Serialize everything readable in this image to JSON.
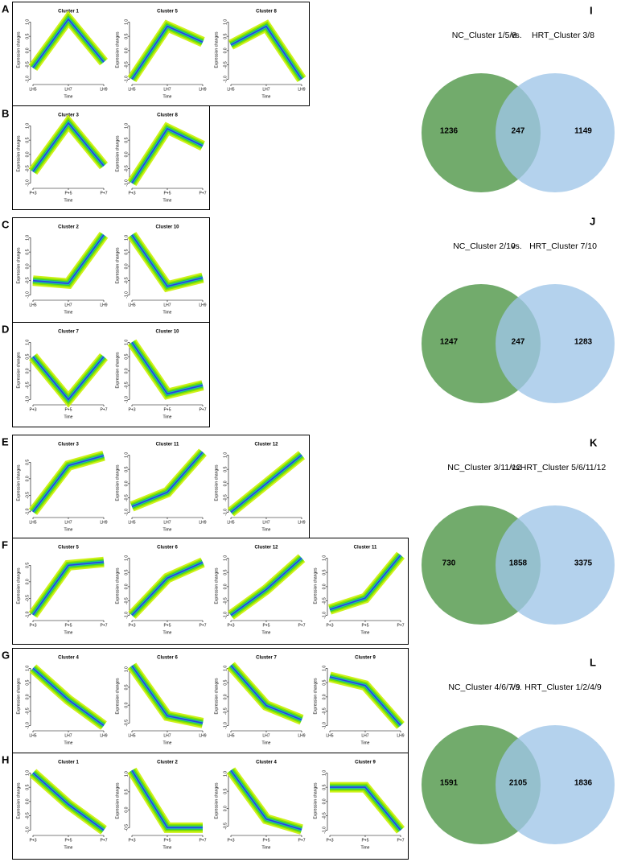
{
  "panel_labels": [
    "A",
    "B",
    "C",
    "D",
    "E",
    "F",
    "G",
    "H",
    "I",
    "J",
    "K",
    "L"
  ],
  "chart_data": [
    {
      "type": "line",
      "title": "Cluster 1",
      "categories": [
        "LH5",
        "LH7",
        "LH9"
      ],
      "values": [
        -0.6,
        1.1,
        -0.4
      ],
      "xlabel": "Time",
      "ylabel": "Expression changes",
      "ylim": [
        -1.1,
        1.15
      ],
      "yticks": [
        {
          "value": -1,
          "label": "-1.0"
        },
        -0.5,
        {
          "value": 0,
          "label": "0.0"
        },
        0.5,
        {
          "value": 1,
          "label": "1.0"
        }
      ]
    },
    {
      "type": "line",
      "title": "Cluster 5",
      "categories": [
        "LH5",
        "LH7",
        "LH9"
      ],
      "values": [
        -1.0,
        0.85,
        0.3
      ],
      "xlabel": "Time",
      "ylabel": "Expression changes",
      "ylim": [
        -1.1,
        1.15
      ],
      "yticks": [
        {
          "value": -1,
          "label": "-1.0"
        },
        -0.5,
        {
          "value": 0,
          "label": "0.0"
        },
        0.5,
        {
          "value": 1,
          "label": "1.0"
        }
      ]
    },
    {
      "type": "line",
      "title": "Cluster 8",
      "categories": [
        "LH5",
        "LH7",
        "LH9"
      ],
      "values": [
        0.2,
        0.85,
        -1.0
      ],
      "xlabel": "Time",
      "ylabel": "Expression changes",
      "ylim": [
        -1.1,
        1.15
      ],
      "yticks": [
        {
          "value": -1,
          "label": "-1.0"
        },
        -0.5,
        {
          "value": 0,
          "label": "0.0"
        },
        0.5,
        {
          "value": 1,
          "label": "1.0"
        }
      ]
    },
    {
      "type": "line",
      "title": "Cluster 3",
      "categories": [
        "P+3",
        "P+5",
        "P+7"
      ],
      "values": [
        -0.6,
        1.1,
        -0.4
      ],
      "xlabel": "Time",
      "ylabel": "Expression changes",
      "ylim": [
        -1.1,
        1.15
      ],
      "yticks": [
        {
          "value": -1,
          "label": "-1.0"
        },
        -0.5,
        {
          "value": 0,
          "label": "0.0"
        },
        0.5,
        {
          "value": 1,
          "label": "1.0"
        }
      ]
    },
    {
      "type": "line",
      "title": "Cluster 8",
      "categories": [
        "P+3",
        "P+5",
        "P+7"
      ],
      "values": [
        -1.0,
        0.9,
        0.3
      ],
      "xlabel": "Time",
      "ylabel": "Expression changes",
      "ylim": [
        -1.1,
        1.15
      ],
      "yticks": [
        {
          "value": -1,
          "label": "-1.0"
        },
        -0.5,
        {
          "value": 0,
          "label": "0.0"
        },
        0.5,
        {
          "value": 1,
          "label": "1.0"
        }
      ]
    },
    {
      "type": "line",
      "title": "Cluster 2",
      "categories": [
        "LH5",
        "LH7",
        "LH9"
      ],
      "values": [
        -0.5,
        -0.6,
        1.1
      ],
      "xlabel": "Time",
      "ylabel": "Expression changes",
      "ylim": [
        -1.1,
        1.15
      ],
      "yticks": [
        {
          "value": -1,
          "label": "-1.0"
        },
        -0.5,
        {
          "value": 0,
          "label": "0.0"
        },
        0.5,
        {
          "value": 1,
          "label": "1.0"
        }
      ]
    },
    {
      "type": "line",
      "title": "Cluster 10",
      "categories": [
        "LH5",
        "LH7",
        "LH9"
      ],
      "values": [
        1.1,
        -0.7,
        -0.4
      ],
      "xlabel": "Time",
      "ylabel": "Expression changes",
      "ylim": [
        -1.1,
        1.15
      ],
      "yticks": [
        {
          "value": -1,
          "label": "-1.0"
        },
        -0.5,
        {
          "value": 0,
          "label": "0.0"
        },
        0.5,
        {
          "value": 1,
          "label": "1.0"
        }
      ]
    },
    {
      "type": "line",
      "title": "Cluster 7",
      "categories": [
        "P+3",
        "P+5",
        "P+7"
      ],
      "values": [
        0.5,
        -1.0,
        0.5
      ],
      "xlabel": "Time",
      "ylabel": "Expression changes",
      "ylim": [
        -1.1,
        1.15
      ],
      "yticks": [
        {
          "value": -1,
          "label": "-1.0"
        },
        -0.5,
        {
          "value": 0,
          "label": "0.0"
        },
        0.5,
        {
          "value": 1,
          "label": "1.0"
        }
      ]
    },
    {
      "type": "line",
      "title": "Cluster 10",
      "categories": [
        "P+3",
        "P+5",
        "P+7"
      ],
      "values": [
        1.0,
        -0.8,
        -0.5
      ],
      "xlabel": "Time",
      "ylabel": "Expression changes",
      "ylim": [
        -1.1,
        1.15
      ],
      "yticks": [
        {
          "value": -1,
          "label": "-1.0"
        },
        -0.5,
        {
          "value": 0,
          "label": "0.0"
        },
        0.5,
        {
          "value": 1,
          "label": "1.0"
        }
      ]
    },
    {
      "type": "line",
      "title": "Cluster 3",
      "categories": [
        "LH5",
        "LH7",
        "LH9"
      ],
      "values": [
        -1.0,
        0.4,
        0.7
      ],
      "xlabel": "Time",
      "ylabel": "Expression changes",
      "ylim": [
        -1.1,
        0.85
      ],
      "yticks": [
        {
          "value": -1,
          "label": "-1.0"
        },
        -0.5,
        {
          "value": 0,
          "label": "0.0"
        },
        0.5
      ]
    },
    {
      "type": "line",
      "title": "Cluster 11",
      "categories": [
        "LH5",
        "LH7",
        "LH9"
      ],
      "values": [
        -0.8,
        -0.3,
        1.1
      ],
      "xlabel": "Time",
      "ylabel": "Expression changes",
      "ylim": [
        -1.1,
        1.15
      ],
      "yticks": [
        {
          "value": -1,
          "label": "-1.0"
        },
        -0.5,
        {
          "value": 0,
          "label": "0.0"
        },
        0.5,
        {
          "value": 1,
          "label": "1.0"
        }
      ]
    },
    {
      "type": "line",
      "title": "Cluster 12",
      "categories": [
        "LH5",
        "LH7",
        "LH9"
      ],
      "values": [
        -1.0,
        0.0,
        1.0
      ],
      "xlabel": "Time",
      "ylabel": "Expression changes",
      "ylim": [
        -1.1,
        1.15
      ],
      "yticks": [
        {
          "value": -1,
          "label": "-1.0"
        },
        -0.5,
        {
          "value": 0,
          "label": "0.0"
        },
        0.5,
        {
          "value": 1,
          "label": "1.0"
        }
      ]
    },
    {
      "type": "line",
      "title": "Cluster 5",
      "categories": [
        "P+3",
        "P+5",
        "P+7"
      ],
      "values": [
        -1.0,
        0.5,
        0.6
      ],
      "xlabel": "Time",
      "ylabel": "Expression changes",
      "ylim": [
        -1.1,
        0.85
      ],
      "yticks": [
        {
          "value": -1,
          "label": "-1.0"
        },
        -0.5,
        {
          "value": 0,
          "label": "0.0"
        },
        0.5
      ]
    },
    {
      "type": "line",
      "title": "Cluster 6",
      "categories": [
        "P+3",
        "P+5",
        "P+7"
      ],
      "values": [
        -1.0,
        0.3,
        0.85
      ],
      "xlabel": "Time",
      "ylabel": "Expression changes",
      "ylim": [
        -1.1,
        1.15
      ],
      "yticks": [
        {
          "value": -1,
          "label": "-1.0"
        },
        -0.5,
        {
          "value": 0,
          "label": "0.0"
        },
        0.5,
        {
          "value": 1,
          "label": "1.0"
        }
      ]
    },
    {
      "type": "line",
      "title": "Cluster 12",
      "categories": [
        "P+3",
        "P+5",
        "P+7"
      ],
      "values": [
        -1.0,
        -0.1,
        1.0
      ],
      "xlabel": "Time",
      "ylabel": "Expression changes",
      "ylim": [
        -1.1,
        1.15
      ],
      "yticks": [
        {
          "value": -1,
          "label": "-1.0"
        },
        -0.5,
        {
          "value": 0,
          "label": "0.0"
        },
        0.5,
        {
          "value": 1,
          "label": "1.0"
        }
      ]
    },
    {
      "type": "line",
      "title": "Cluster 11",
      "categories": [
        "P+3",
        "P+5",
        "P+7"
      ],
      "values": [
        -0.8,
        -0.4,
        1.1
      ],
      "xlabel": "Time",
      "ylabel": "Expression changes",
      "ylim": [
        -1.1,
        1.15
      ],
      "yticks": [
        {
          "value": -1,
          "label": "-1.0"
        },
        -0.5,
        {
          "value": 0,
          "label": "0.0"
        },
        0.5,
        {
          "value": 1,
          "label": "1.0"
        }
      ]
    },
    {
      "type": "line",
      "title": "Cluster 4",
      "categories": [
        "LH5",
        "LH7",
        "LH9"
      ],
      "values": [
        1.0,
        -0.1,
        -1.0
      ],
      "xlabel": "Time",
      "ylabel": "Expression changes",
      "ylim": [
        -1.1,
        1.15
      ],
      "yticks": [
        {
          "value": -1,
          "label": "-1.0"
        },
        -0.5,
        {
          "value": 0,
          "label": "0.0"
        },
        0.5,
        {
          "value": 1,
          "label": "1.0"
        }
      ]
    },
    {
      "type": "line",
      "title": "Cluster 6",
      "categories": [
        "LH5",
        "LH7",
        "LH9"
      ],
      "values": [
        1.1,
        -0.3,
        -0.5
      ],
      "xlabel": "Time",
      "ylabel": "Expression changes",
      "ylim": [
        -0.65,
        1.15
      ],
      "yticks": [
        -0.5,
        {
          "value": 0,
          "label": "0.0"
        },
        0.5,
        {
          "value": 1,
          "label": "1.0"
        }
      ]
    },
    {
      "type": "line",
      "title": "Cluster 7",
      "categories": [
        "LH5",
        "LH7",
        "LH9"
      ],
      "values": [
        1.1,
        -0.3,
        -0.8
      ],
      "xlabel": "Time",
      "ylabel": "Expression changes",
      "ylim": [
        -1.1,
        1.15
      ],
      "yticks": [
        {
          "value": -1,
          "label": "-1.0"
        },
        -0.5,
        {
          "value": 0,
          "label": "0.0"
        },
        0.5,
        {
          "value": 1,
          "label": "1.0"
        }
      ]
    },
    {
      "type": "line",
      "title": "Cluster 9",
      "categories": [
        "LH5",
        "LH7",
        "LH9"
      ],
      "values": [
        0.7,
        0.4,
        -1.0
      ],
      "xlabel": "Time",
      "ylabel": "Expression changes",
      "ylim": [
        -1.1,
        1.15
      ],
      "yticks": [
        {
          "value": -1,
          "label": "-1.0"
        },
        -0.5,
        {
          "value": 0,
          "label": "0.0"
        },
        0.5,
        {
          "value": 1,
          "label": "1.0"
        }
      ]
    },
    {
      "type": "line",
      "title": "Cluster 1",
      "categories": [
        "P+3",
        "P+5",
        "P+7"
      ],
      "values": [
        1.0,
        -0.1,
        -1.0
      ],
      "xlabel": "Time",
      "ylabel": "Expression changes",
      "ylim": [
        -1.1,
        1.15
      ],
      "yticks": [
        {
          "value": -1,
          "label": "-1.0"
        },
        -0.5,
        {
          "value": 0,
          "label": "0.0"
        },
        0.5,
        {
          "value": 1,
          "label": "1.0"
        }
      ]
    },
    {
      "type": "line",
      "title": "Cluster 2",
      "categories": [
        "P+3",
        "P+5",
        "P+7"
      ],
      "values": [
        1.1,
        -0.5,
        -0.5
      ],
      "xlabel": "Time",
      "ylabel": "Expression changes",
      "ylim": [
        -0.65,
        1.15
      ],
      "yticks": [
        -0.5,
        {
          "value": 0,
          "label": "0.0"
        },
        0.5,
        {
          "value": 1,
          "label": "1.0"
        }
      ]
    },
    {
      "type": "line",
      "title": "Cluster 4",
      "categories": [
        "P+3",
        "P+5",
        "P+7"
      ],
      "values": [
        1.1,
        -0.3,
        -0.6
      ],
      "xlabel": "Time",
      "ylabel": "Expression changes",
      "ylim": [
        -0.7,
        1.15
      ],
      "yticks": [
        -0.5,
        {
          "value": 0,
          "label": "0.0"
        },
        0.5,
        {
          "value": 1,
          "label": "1.0"
        }
      ]
    },
    {
      "type": "line",
      "title": "Cluster 9",
      "categories": [
        "P+3",
        "P+5",
        "P+7"
      ],
      "values": [
        0.5,
        0.5,
        -1.0
      ],
      "xlabel": "Time",
      "ylabel": "Expression changes",
      "ylim": [
        -1.1,
        1.15
      ],
      "yticks": [
        {
          "value": -1,
          "label": "-1.0"
        },
        -0.5,
        {
          "value": 0,
          "label": "0.0"
        },
        0.5,
        {
          "value": 1,
          "label": "1.0"
        }
      ]
    },
    {
      "type": "venn",
      "title_a": "NC_Cluster 1/5/8",
      "separator": "vs.",
      "title_b": "HRT_Cluster 3/8",
      "values": [
        1236,
        247,
        1149
      ],
      "colors": [
        "#72ab6c",
        "#9fc5e8"
      ]
    },
    {
      "type": "venn",
      "title_a": "NC_Cluster 2/10",
      "separator": "vs.",
      "title_b": "HRT_Cluster 7/10",
      "values": [
        1247,
        247,
        1283
      ],
      "colors": [
        "#72ab6c",
        "#9fc5e8"
      ]
    },
    {
      "type": "venn",
      "title_a": "NC_Cluster 3/11/12",
      "separator": "vs.",
      "title_b": "HRT_Cluster 5/6/11/12",
      "values": [
        730,
        1858,
        3375
      ],
      "colors": [
        "#72ab6c",
        "#9fc5e8"
      ]
    },
    {
      "type": "venn",
      "title_a": "NC_Cluster 4/6/7/9",
      "separator": "vs.",
      "title_b": "HRT_Cluster 1/2/4/9",
      "values": [
        1591,
        2105,
        1836
      ],
      "colors": [
        "#72ab6c",
        "#9fc5e8"
      ]
    }
  ]
}
